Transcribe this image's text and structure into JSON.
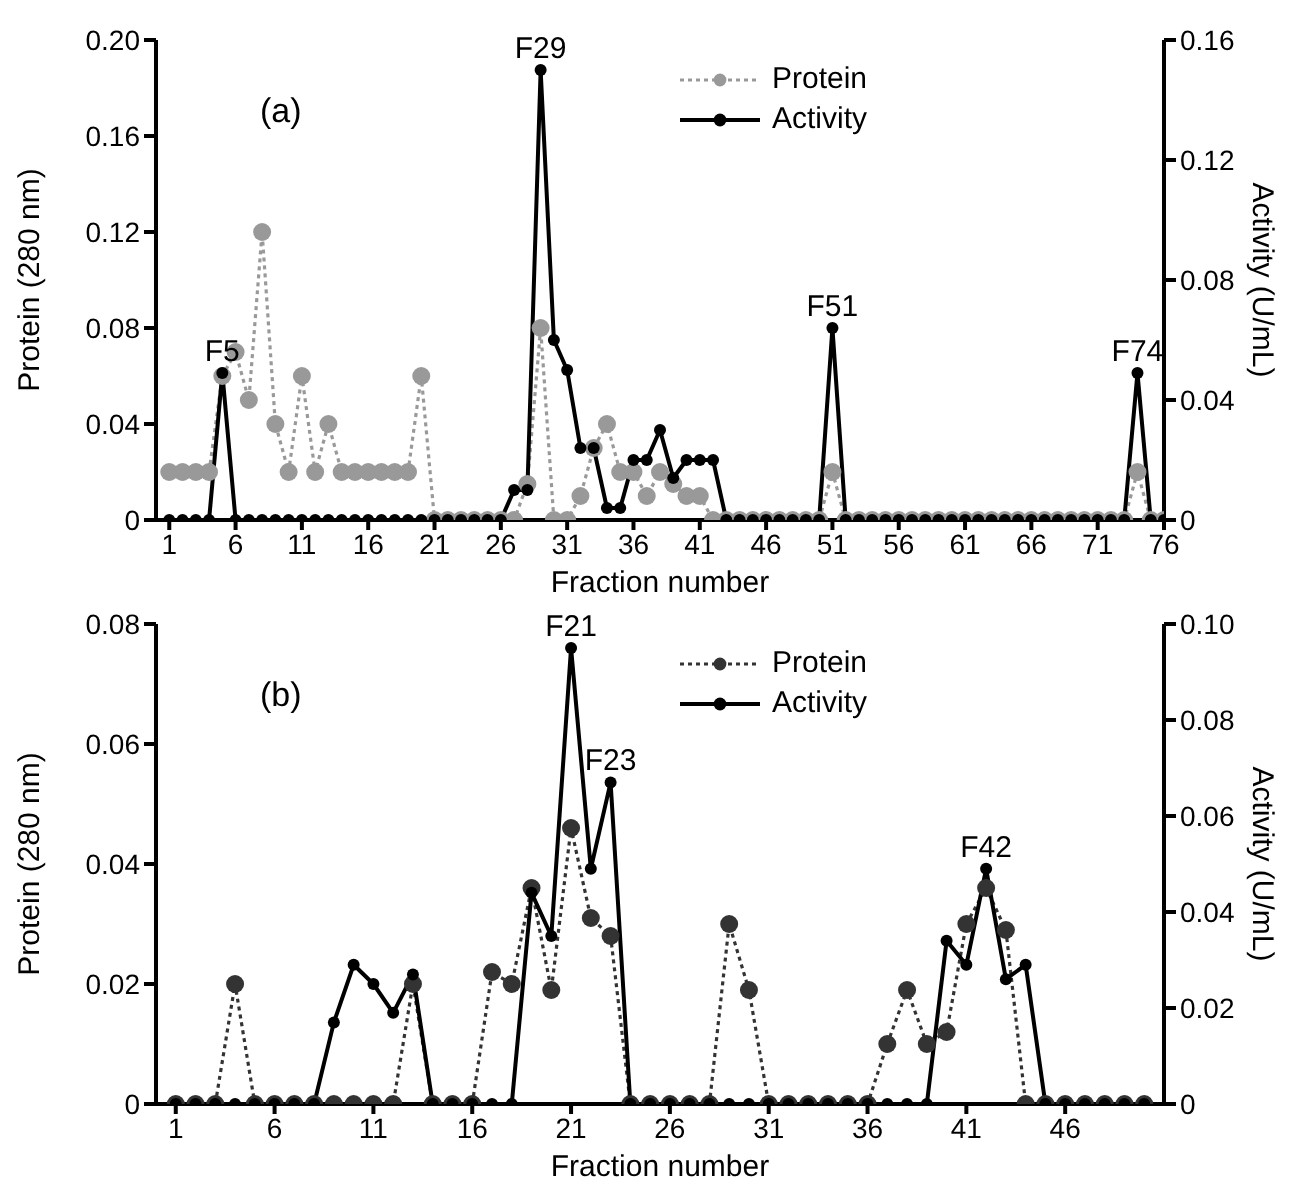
{
  "chart_data": [
    {
      "type": "line",
      "title": "(a)",
      "xlabel": "Fraction number",
      "ylabel": "Protein (280 nm)",
      "y2label": "Activity (U/mL)",
      "x": [
        1,
        2,
        3,
        4,
        5,
        6,
        7,
        8,
        9,
        10,
        11,
        12,
        13,
        14,
        15,
        16,
        17,
        18,
        19,
        20,
        21,
        22,
        23,
        24,
        25,
        26,
        27,
        28,
        29,
        30,
        31,
        32,
        33,
        34,
        35,
        36,
        37,
        38,
        39,
        40,
        41,
        42,
        43,
        44,
        45,
        46,
        47,
        48,
        49,
        50,
        51,
        52,
        53,
        54,
        55,
        56,
        57,
        58,
        59,
        60,
        61,
        62,
        63,
        64,
        65,
        66,
        67,
        68,
        69,
        70,
        71,
        72,
        73,
        74,
        75,
        76
      ],
      "series": [
        {
          "name": "Protein",
          "color": "#999999",
          "line_style": "dotted",
          "marker": "circle",
          "values": [
            0.02,
            0.02,
            0.02,
            0.02,
            0.06,
            0.07,
            0.05,
            0.12,
            0.04,
            0.02,
            0.06,
            0.02,
            0.04,
            0.02,
            0.02,
            0.02,
            0.02,
            0.02,
            0.02,
            0.06,
            0,
            0,
            0,
            0,
            0,
            0,
            0,
            0.015,
            0.08,
            0,
            0,
            0.01,
            0.03,
            0.04,
            0.02,
            0.02,
            0.01,
            0.02,
            0.015,
            0.01,
            0.01,
            0,
            0,
            0,
            0,
            0,
            0,
            0,
            0,
            0,
            0.02,
            0,
            0,
            0,
            0,
            0,
            0,
            0,
            0,
            0,
            0,
            0,
            0,
            0,
            0,
            0,
            0,
            0,
            0,
            0,
            0,
            0,
            0,
            0.02,
            0,
            0
          ]
        },
        {
          "name": "Activity",
          "color": "#000000",
          "axis": "y2",
          "line_style": "solid",
          "marker": "circle",
          "values": [
            0,
            0,
            0,
            0,
            0.049,
            0,
            0,
            0,
            0,
            0,
            0,
            0,
            0,
            0,
            0,
            0,
            0,
            0,
            0,
            0,
            0,
            0,
            0,
            0,
            0,
            0,
            0.01,
            0.01,
            0.15,
            0.06,
            0.05,
            0.024,
            0.024,
            0.004,
            0.004,
            0.02,
            0.02,
            0.03,
            0.014,
            0.02,
            0.02,
            0.02,
            0,
            0,
            0,
            0,
            0,
            0,
            0,
            0,
            0.064,
            0,
            0,
            0,
            0,
            0,
            0,
            0,
            0,
            0,
            0,
            0,
            0,
            0,
            0,
            0,
            0,
            0,
            0,
            0,
            0,
            0,
            0,
            0.049,
            0,
            0
          ]
        }
      ],
      "xlim": [
        0,
        76
      ],
      "xticks": [
        1,
        6,
        11,
        16,
        21,
        26,
        31,
        36,
        41,
        46,
        51,
        56,
        61,
        66,
        71,
        76
      ],
      "ylim": [
        0,
        0.2
      ],
      "yticks": [
        0,
        0.04,
        0.08,
        0.12,
        0.16,
        {
          "value": 0.2,
          "label": "0.20"
        }
      ],
      "y2lim": [
        0,
        0.16
      ],
      "y2ticks": [
        0,
        0.04,
        0.08,
        0.12,
        0.16
      ],
      "annotations": [
        {
          "text": "F5",
          "x": 5,
          "y": 0.06125
        },
        {
          "text": "F29",
          "x": 29,
          "y": 0.1875
        },
        {
          "text": "F51",
          "x": 51,
          "y": 0.08
        },
        {
          "text": "F74",
          "x": 74,
          "y": 0.06125
        }
      ],
      "legend": "top right",
      "grid": false
    },
    {
      "type": "line",
      "title": "(b)",
      "xlabel": "Fraction number",
      "ylabel": "Protein (280 nm)",
      "y2label": "Activity (U/mL)",
      "x": [
        1,
        2,
        3,
        4,
        5,
        6,
        7,
        8,
        9,
        10,
        11,
        12,
        13,
        14,
        15,
        16,
        17,
        18,
        19,
        20,
        21,
        22,
        23,
        24,
        25,
        26,
        27,
        28,
        29,
        30,
        31,
        32,
        33,
        34,
        35,
        36,
        37,
        38,
        39,
        40,
        41,
        42,
        43,
        44,
        45,
        46,
        47,
        48,
        49,
        50
      ],
      "series": [
        {
          "name": "Protein",
          "color": "#333333",
          "line_style": "dotted",
          "marker": "circle",
          "values": [
            0,
            0,
            0,
            0.02,
            0,
            0,
            0,
            0,
            0,
            0,
            0,
            0,
            0.02,
            0,
            0,
            0,
            0.022,
            0.02,
            0.036,
            0.019,
            0.046,
            0.031,
            0.028,
            0,
            0,
            0,
            0,
            0,
            0.03,
            0.019,
            0,
            0,
            0,
            0,
            0,
            0,
            0.01,
            0.019,
            0.01,
            0.012,
            0.03,
            0.036,
            0.029,
            0,
            0,
            0,
            0,
            0,
            0,
            0
          ]
        },
        {
          "name": "Activity",
          "color": "#000000",
          "axis": "y2",
          "line_style": "solid",
          "marker": "circle",
          "values": [
            0,
            0,
            0,
            0,
            0,
            0,
            0,
            0,
            0.017,
            0.029,
            0.025,
            0.019,
            0.027,
            0,
            0,
            0,
            0,
            0,
            0.044,
            0.035,
            0.095,
            0.049,
            0.067,
            0,
            0,
            0,
            0,
            0,
            0,
            0,
            0,
            0,
            0,
            0,
            0,
            0,
            0,
            0,
            0,
            0.034,
            0.029,
            0.049,
            0.026,
            0.029,
            0,
            0,
            0,
            0,
            0,
            0
          ]
        }
      ],
      "xlim": [
        0,
        51
      ],
      "xticks": [
        1,
        6,
        11,
        16,
        21,
        26,
        31,
        36,
        41,
        46
      ],
      "ylim": [
        0,
        0.08
      ],
      "yticks": [
        0,
        0.02,
        0.04,
        0.06,
        0.08
      ],
      "y2lim": [
        0,
        0.1
      ],
      "y2ticks": [
        0,
        0.02,
        0.04,
        0.06,
        0.08,
        {
          "value": 0.1,
          "label": "0.10"
        }
      ],
      "annotations": [
        {
          "text": "F21",
          "x": 21,
          "y": 0.076
        },
        {
          "text": "F23",
          "x": 23,
          "y": 0.0536
        },
        {
          "text": "F42",
          "x": 42,
          "y": 0.0392
        }
      ],
      "legend": "top right",
      "grid": false
    }
  ]
}
